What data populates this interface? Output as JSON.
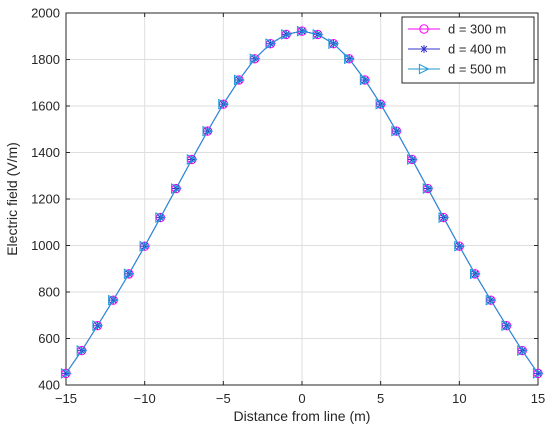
{
  "chart_data": {
    "type": "line",
    "title": "",
    "xlabel": "Distance from line (m)",
    "ylabel": "Electric field (V/m)",
    "xlim": [
      -15,
      15
    ],
    "ylim": [
      400,
      2000
    ],
    "xticks": [
      -15,
      -10,
      -5,
      0,
      5,
      10,
      15
    ],
    "yticks": [
      400,
      600,
      800,
      1000,
      1200,
      1400,
      1600,
      1800,
      2000
    ],
    "xtick_labels": [
      "−15",
      "−10",
      "−5",
      "0",
      "5",
      "10",
      "15"
    ],
    "ytick_labels": [
      "400",
      "600",
      "800",
      "1000",
      "1200",
      "1400",
      "1600",
      "1800",
      "2000"
    ],
    "grid": true,
    "legend_position": "top-right",
    "x": [
      -15,
      -14,
      -13,
      -12,
      -11,
      -10,
      -9,
      -8,
      -7,
      -6,
      -5,
      -4,
      -3,
      -2,
      -1,
      0,
      1,
      2,
      3,
      4,
      5,
      6,
      7,
      8,
      9,
      10,
      11,
      12,
      13,
      14,
      15
    ],
    "series": [
      {
        "name": "d = 300 m",
        "color": "#ff00ff",
        "marker": "circle",
        "values": [
          450,
          548,
          655,
          765,
          878,
          997,
          1120,
          1245,
          1370,
          1492,
          1608,
          1712,
          1803,
          1868,
          1908,
          1922,
          1908,
          1868,
          1803,
          1712,
          1608,
          1492,
          1370,
          1245,
          1120,
          997,
          878,
          765,
          655,
          548,
          450
        ]
      },
      {
        "name": "d = 400 m",
        "color": "#3333cc",
        "marker": "star",
        "values": [
          450,
          548,
          655,
          765,
          878,
          997,
          1120,
          1245,
          1370,
          1492,
          1608,
          1712,
          1803,
          1868,
          1908,
          1922,
          1908,
          1868,
          1803,
          1712,
          1608,
          1492,
          1370,
          1245,
          1120,
          997,
          878,
          765,
          655,
          548,
          450
        ]
      },
      {
        "name": "d = 500 m",
        "color": "#1f9ad6",
        "marker": "triangle-right",
        "values": [
          450,
          548,
          655,
          765,
          878,
          997,
          1120,
          1245,
          1370,
          1492,
          1608,
          1712,
          1803,
          1868,
          1908,
          1922,
          1908,
          1868,
          1803,
          1712,
          1608,
          1492,
          1370,
          1245,
          1120,
          997,
          878,
          765,
          655,
          548,
          450
        ]
      }
    ]
  }
}
